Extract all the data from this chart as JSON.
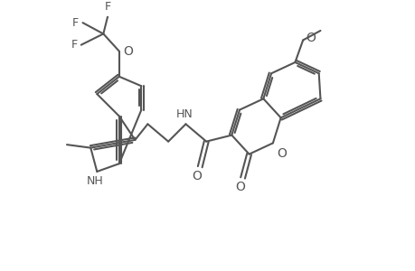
{
  "bg_color": "#ffffff",
  "line_color": "#555555",
  "line_width": 1.5,
  "font_size": 9,
  "fig_width": 4.6,
  "fig_height": 3.0,
  "dpi": 100,
  "xlim": [
    0,
    11
  ],
  "ylim": [
    1,
    9
  ]
}
